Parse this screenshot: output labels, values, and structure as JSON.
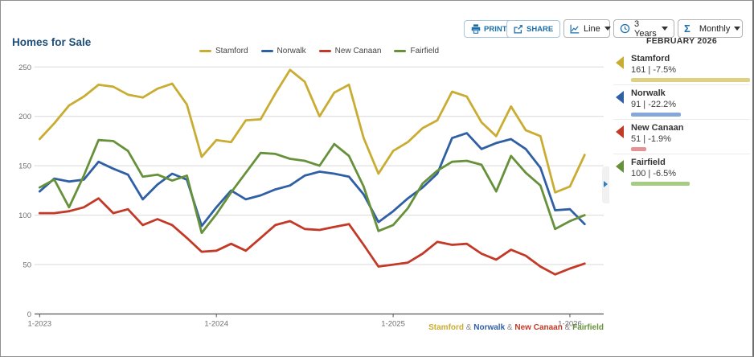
{
  "header": {
    "title": "Homes for Sale"
  },
  "toolbar": {
    "print_label": "PRINT",
    "share_label": "SHARE",
    "chart_type": {
      "label": "Line"
    },
    "range": {
      "label": "3 Years"
    },
    "interval": {
      "label": "Monthly",
      "sigma_glyph": "Σ"
    }
  },
  "chart_data": {
    "type": "line",
    "title": "Homes for Sale",
    "x_unit": "month",
    "x_range": [
      "1-2023",
      "2-2026"
    ],
    "x_ticks": [
      {
        "i": 0,
        "label": "1-2023"
      },
      {
        "i": 12,
        "label": "1-2024"
      },
      {
        "i": 24,
        "label": "1-2025"
      },
      {
        "i": 36,
        "label": "1-2026"
      }
    ],
    "ylim": [
      0,
      250
    ],
    "yticks": [
      0,
      50,
      100,
      150,
      200,
      250
    ],
    "grid": true,
    "legend_position": "top-center",
    "draw_order": [
      2,
      1,
      3,
      0
    ],
    "series": [
      {
        "name": "Stamford",
        "color": "#c9ad33",
        "values": [
          177,
          193,
          211,
          220,
          232,
          230,
          222,
          219,
          228,
          233,
          212,
          159,
          176,
          174,
          196,
          197,
          223,
          247,
          235,
          200,
          224,
          232,
          178,
          142,
          165,
          174,
          188,
          196,
          225,
          220,
          194,
          180,
          210,
          186,
          180,
          123,
          129,
          161
        ]
      },
      {
        "name": "Norwalk",
        "color": "#2f5fa5",
        "values": [
          124,
          137,
          134,
          136,
          154,
          147,
          141,
          116,
          131,
          142,
          136,
          89,
          108,
          125,
          116,
          120,
          126,
          130,
          140,
          144,
          142,
          139,
          121,
          93,
          104,
          117,
          128,
          142,
          178,
          183,
          167,
          173,
          177,
          167,
          148,
          105,
          106,
          91
        ]
      },
      {
        "name": "New Canaan",
        "color": "#c23a27",
        "values": [
          102,
          102,
          104,
          108,
          117,
          102,
          106,
          90,
          96,
          90,
          77,
          63,
          64,
          71,
          64,
          77,
          90,
          94,
          86,
          85,
          88,
          91,
          70,
          48,
          50,
          52,
          61,
          73,
          70,
          71,
          61,
          55,
          65,
          59,
          48,
          40,
          46,
          51
        ]
      },
      {
        "name": "Fairfield",
        "color": "#66913a",
        "values": [
          128,
          136,
          108,
          140,
          176,
          175,
          165,
          139,
          141,
          135,
          140,
          82,
          101,
          123,
          143,
          163,
          162,
          157,
          155,
          150,
          172,
          160,
          129,
          84,
          90,
          107,
          132,
          145,
          154,
          155,
          151,
          124,
          160,
          143,
          130,
          86,
          94,
          100
        ]
      }
    ]
  },
  "footer": {
    "separator": "&"
  },
  "panel": {
    "header": "FEBRUARY 2026",
    "items": [
      {
        "name": "Stamford",
        "value": 161,
        "change": "-7.5%",
        "stats": "161 | -7.5%",
        "bar_pct": 100,
        "arrow_color": "#c9ad33",
        "bar_color": "#dfd183"
      },
      {
        "name": "Norwalk",
        "value": 91,
        "change": "-22.2%",
        "stats": "91 | -22.2%",
        "bar_pct": 42,
        "arrow_color": "#2f5fa5",
        "bar_color": "#86a7d9"
      },
      {
        "name": "New Canaan",
        "value": 51,
        "change": "-1.9%",
        "stats": "51 | -1.9%",
        "bar_pct": 13,
        "arrow_color": "#c23a27",
        "bar_color": "#e59296"
      },
      {
        "name": "Fairfield",
        "value": 100,
        "change": "-6.5%",
        "stats": "100 | -6.5%",
        "bar_pct": 49,
        "arrow_color": "#66913a",
        "bar_color": "#a8cb84"
      }
    ]
  },
  "colors": {
    "accent_blue": "#1a6fad",
    "title_navy": "#1d4e79",
    "grid": "#d9d9d9",
    "axis_line": "#555555",
    "axis_text": "#6f6f6f"
  }
}
